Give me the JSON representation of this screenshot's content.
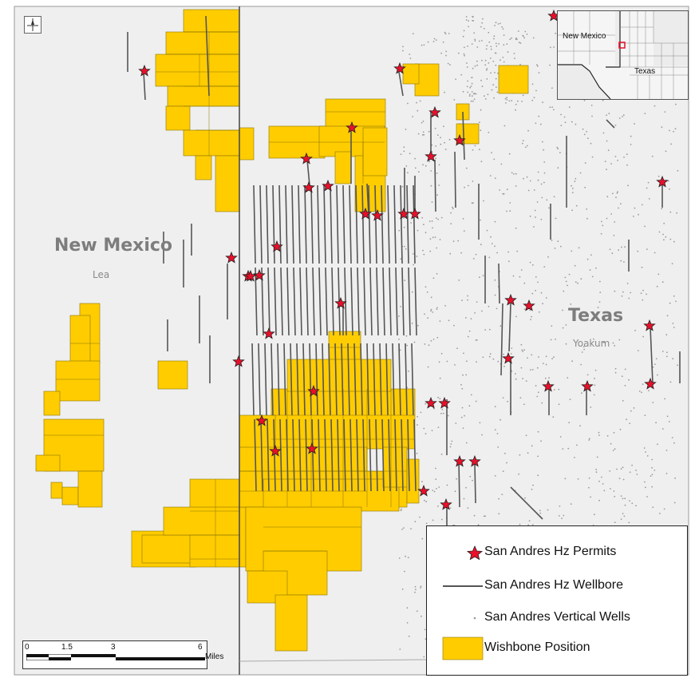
{
  "map": {
    "states": [
      {
        "name": "New Mexico",
        "county": "Lea"
      },
      {
        "name": "Texas",
        "county": "Yoakum"
      }
    ],
    "inset": {
      "labels": [
        "New Mexico",
        "Texas"
      ]
    },
    "legend": {
      "items": [
        {
          "label": "San Andres Hz Permits",
          "symbol": "red-star",
          "color": "#e8102a"
        },
        {
          "label": "San Andres Hz Wellbore",
          "symbol": "line",
          "color": "#555555"
        },
        {
          "label": "San Andres Vertical Wells",
          "symbol": "dot",
          "color": "#9a9a9a"
        },
        {
          "label": "Wishbone Position",
          "symbol": "fill",
          "color": "#ffcc00"
        }
      ]
    },
    "scale_bar": {
      "ticks": [
        "0",
        "1.5",
        "3",
        "6"
      ],
      "unit": "Miles"
    },
    "colors": {
      "background": "#efefef",
      "position_fill": "#ffcc00",
      "position_outline": "#8a7400",
      "border": "#444444",
      "permit_star": "#e8102a"
    }
  }
}
